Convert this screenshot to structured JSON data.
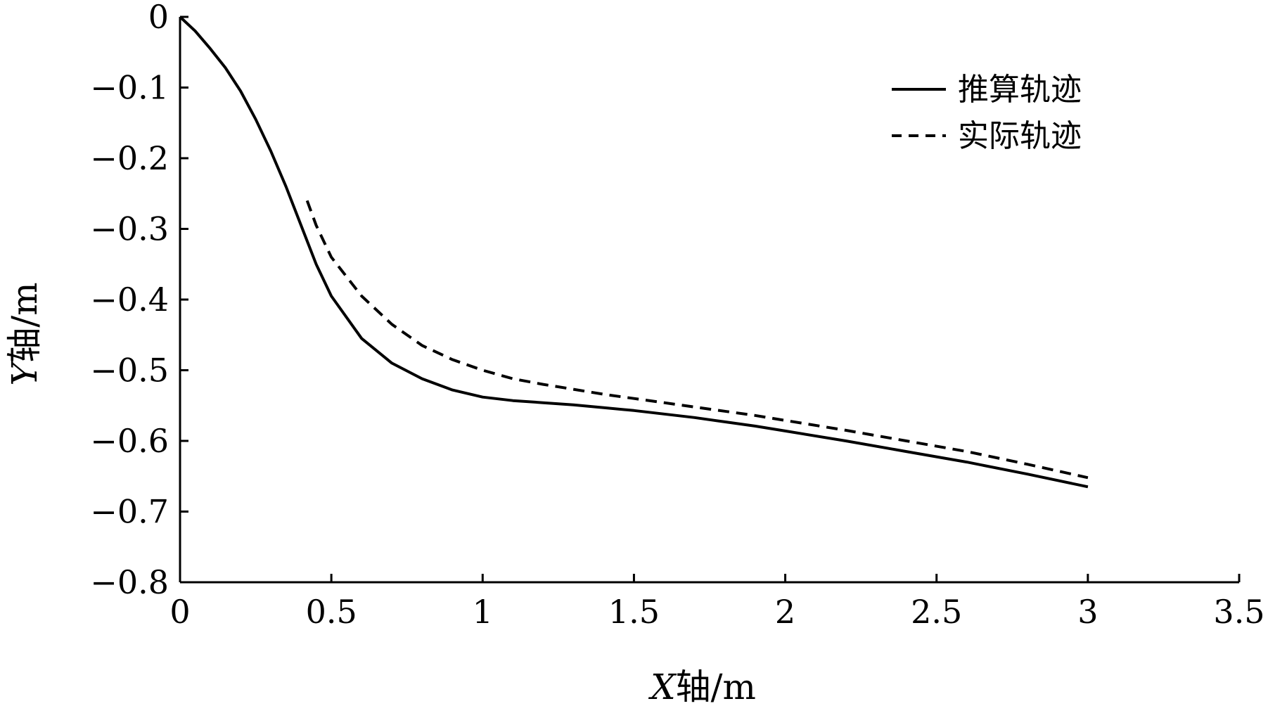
{
  "chart_data": {
    "type": "line",
    "title": "",
    "xlabel": {
      "var": "X",
      "rest": "轴/m"
    },
    "ylabel": {
      "var": "Y",
      "rest": "轴/m"
    },
    "xlim": [
      0,
      3.5
    ],
    "ylim": [
      -0.8,
      0
    ],
    "x_ticks": [
      0,
      0.5,
      1,
      1.5,
      2,
      2.5,
      3,
      3.5
    ],
    "x_tick_labels": [
      "0",
      "0.5",
      "1",
      "1.5",
      "2",
      "2.5",
      "3",
      "3.5"
    ],
    "y_ticks": [
      0,
      -0.1,
      -0.2,
      -0.3,
      -0.4,
      -0.5,
      -0.6,
      -0.7,
      -0.8
    ],
    "y_tick_labels": [
      "0",
      "−0.1",
      "−0.2",
      "−0.3",
      "−0.4",
      "−0.5",
      "−0.6",
      "−0.7",
      "−0.8"
    ],
    "grid": false,
    "legend_position": "top-right",
    "series": [
      {
        "name": "推算轨迹",
        "style": "solid",
        "color": "#000000",
        "x": [
          0,
          0.05,
          0.1,
          0.15,
          0.2,
          0.25,
          0.3,
          0.35,
          0.4,
          0.45,
          0.5,
          0.6,
          0.7,
          0.8,
          0.9,
          1.0,
          1.1,
          1.2,
          1.3,
          1.4,
          1.5,
          1.6,
          1.7,
          1.8,
          1.9,
          2.0,
          2.2,
          2.4,
          2.6,
          2.8,
          3.0
        ],
        "y": [
          0,
          -0.02,
          -0.045,
          -0.072,
          -0.105,
          -0.145,
          -0.19,
          -0.24,
          -0.295,
          -0.35,
          -0.395,
          -0.455,
          -0.49,
          -0.512,
          -0.528,
          -0.538,
          -0.543,
          -0.546,
          -0.549,
          -0.553,
          -0.557,
          -0.562,
          -0.567,
          -0.573,
          -0.579,
          -0.586,
          -0.6,
          -0.615,
          -0.63,
          -0.647,
          -0.665
        ]
      },
      {
        "name": "实际轨迹",
        "style": "dashed",
        "color": "#000000",
        "x": [
          0.42,
          0.45,
          0.5,
          0.6,
          0.7,
          0.8,
          0.9,
          1.0,
          1.1,
          1.2,
          1.3,
          1.4,
          1.5,
          1.6,
          1.7,
          1.8,
          1.9,
          2.0,
          2.2,
          2.4,
          2.6,
          2.8,
          3.0
        ],
        "y": [
          -0.26,
          -0.295,
          -0.34,
          -0.395,
          -0.435,
          -0.465,
          -0.485,
          -0.5,
          -0.512,
          -0.52,
          -0.527,
          -0.534,
          -0.54,
          -0.546,
          -0.552,
          -0.558,
          -0.564,
          -0.571,
          -0.585,
          -0.6,
          -0.615,
          -0.633,
          -0.652
        ]
      }
    ]
  }
}
